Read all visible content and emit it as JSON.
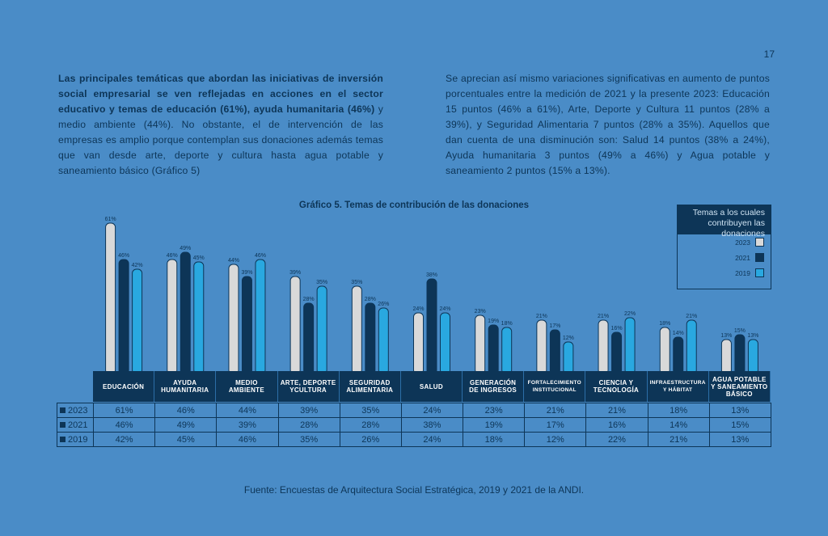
{
  "page_number": "17",
  "paragraph_left": {
    "bold": "Las principales temáticas que abordan las iniciativas de inversión social empresarial se ven reflejadas en acciones en el sector educativo y temas de educación (61%), ayuda humanitaria (46%)",
    "normal": " y medio ambiente (44%). No obstante, el de intervención de las empresas es amplio porque contemplan sus donaciones además temas que van desde arte, deporte y cultura hasta agua potable y saneamiento básico (Gráfico 5)"
  },
  "paragraph_right": "Se aprecian así mismo variaciones significativas en aumento de puntos porcentuales entre la medición de 2021 y la presente 2023: Educación 15 puntos (46% a 61%), Arte, Deporte y Cultura 11 puntos (28% a 39%), y Seguridad Alimentaria 7 puntos (28% a 35%). Aquellos que dan cuenta de una disminución son: Salud 14 puntos (38% a 24%), Ayuda humanitaria 3 puntos (49% a 46%) y Agua potable y saneamiento 2 puntos (15% a 13%).",
  "source": "Fuente: Encuestas de Arquitectura Social Estratégica, 2019 y 2021 de la ANDI.",
  "chart_data": {
    "type": "bar",
    "title": "Gráfico 5. Temas de contribución de las donaciones",
    "legend_title": "Temas a los cuales contribuyen las donaciones",
    "legend_position": "top-right",
    "categories": [
      "EDUCACIÓN",
      "AYUDA HUMANITARIA",
      "MEDIO AMBIENTE",
      "ARTE, DEPORTE YCULTURA",
      "SEGURIDAD ALIMENTARIA",
      "SALUD",
      "GENERACIÓN DE INGRESOS",
      "FORTALECIMIENTO INSTITUCIONAL",
      "CIENCIA Y TECNOLOGÍA",
      "INFRAESTRUCTURA Y HÁBITAT",
      "AGUA POTABLE Y SANEAMIENTO BÁSICO"
    ],
    "series": [
      {
        "name": "2023",
        "color": "#d9d9d9",
        "values": [
          61,
          46,
          44,
          39,
          35,
          24,
          23,
          21,
          21,
          18,
          13
        ]
      },
      {
        "name": "2021",
        "color": "#0d3557",
        "values": [
          46,
          49,
          39,
          28,
          28,
          38,
          19,
          17,
          16,
          14,
          15
        ]
      },
      {
        "name": "2019",
        "color": "#29a8e0",
        "values": [
          42,
          45,
          46,
          35,
          26,
          24,
          18,
          12,
          22,
          21,
          13
        ]
      }
    ],
    "value_suffix": "%",
    "ylim": [
      0,
      61
    ],
    "grid": false
  }
}
